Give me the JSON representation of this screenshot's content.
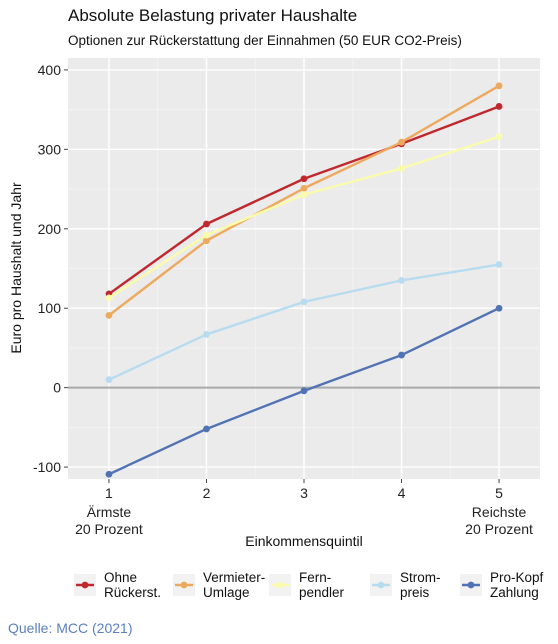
{
  "source": "Quelle: MCC (2021)",
  "chart_data": {
    "type": "line",
    "title": "Absolute Belastung privater Haushalte",
    "subtitle": "Optionen zur Rückerstattung der Einnahmen (50 EUR CO2-Preis)",
    "xlabel": "Einkommensquintil",
    "ylabel": "Euro pro Haushalt und Jahr",
    "x": [
      1,
      2,
      3,
      4,
      5
    ],
    "x_tick_labels": [
      "1",
      "2",
      "3",
      "4",
      "5"
    ],
    "x_tick_sublabels": {
      "1": [
        "Ärmste",
        "20 Prozent"
      ],
      "5": [
        "Reichste",
        "20 Prozent"
      ]
    },
    "ylim": [
      -115,
      415
    ],
    "y_ticks": [
      -100,
      0,
      100,
      200,
      300,
      400
    ],
    "y_tick_labels": [
      "-100",
      "0",
      "100",
      "200",
      "300",
      "400"
    ],
    "grid": true,
    "zero_line": true,
    "legend_position": "bottom",
    "series": [
      {
        "name": [
          "Ohne",
          "Rückerst."
        ],
        "color": "#c0282d",
        "values": [
          118,
          206,
          263,
          307,
          354
        ]
      },
      {
        "name": [
          "Vermieter-",
          "Umlage"
        ],
        "color": "#eda95e",
        "values": [
          91,
          185,
          251,
          309,
          380
        ]
      },
      {
        "name": [
          "Fern-",
          "pendler"
        ],
        "color": "#fbfbac",
        "values": [
          113,
          192,
          243,
          276,
          316
        ]
      },
      {
        "name": [
          "Strom-",
          "preis"
        ],
        "color": "#b8dcef",
        "values": [
          10,
          67,
          108,
          135,
          155
        ]
      },
      {
        "name": [
          "Pro-Kopf",
          "Zahlung"
        ],
        "color": "#5173b4",
        "values": [
          -109,
          -52,
          -4,
          41,
          100
        ]
      }
    ]
  }
}
